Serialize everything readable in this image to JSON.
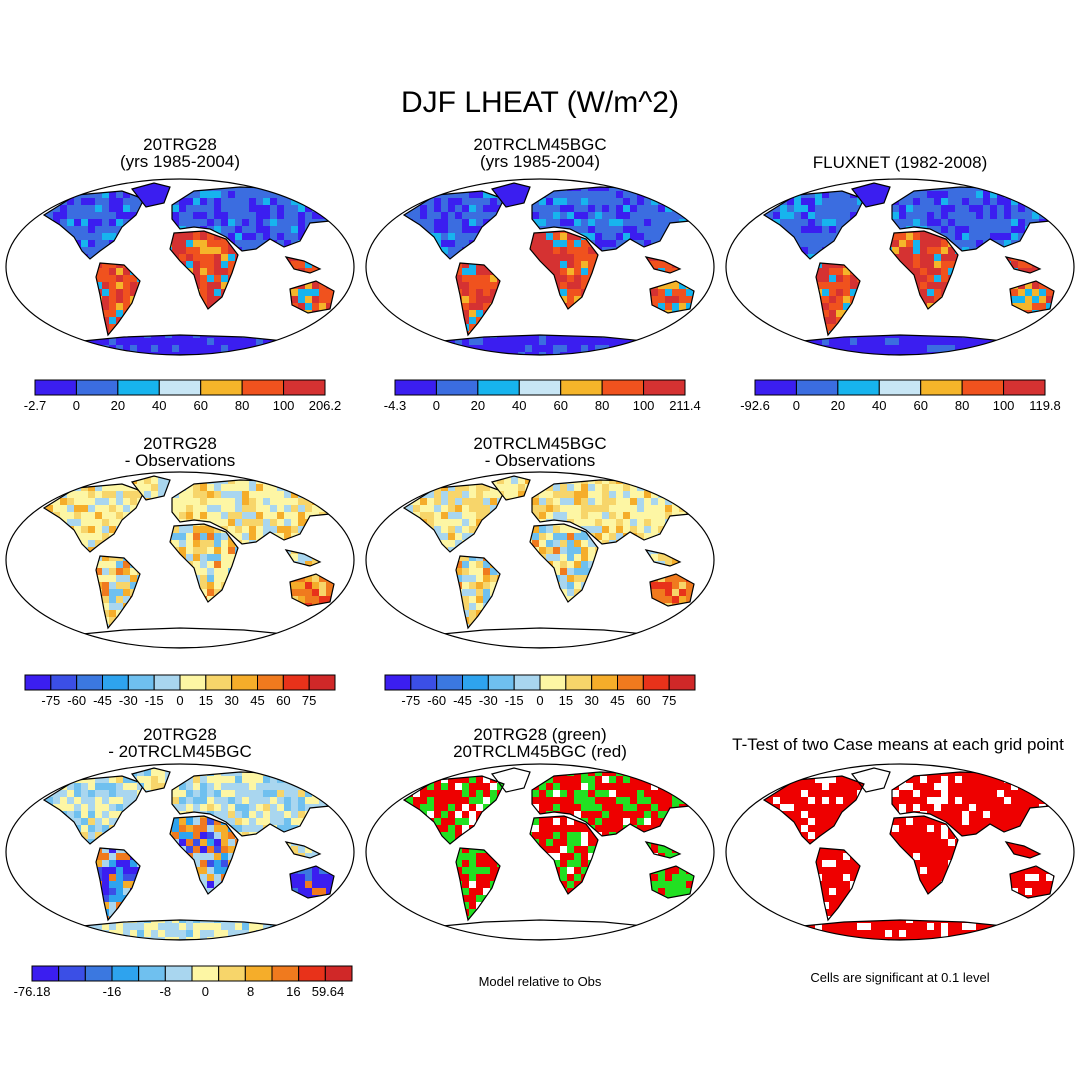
{
  "main_title": "DJF LHEAT (W/m^2)",
  "panels": [
    {
      "title_lines": [
        "20TRG28",
        "(yrs 1985-2004)"
      ],
      "kind": "abs",
      "colorbar_labels": [
        "-2.7",
        "0",
        "20",
        "40",
        "60",
        "80",
        "100",
        "206.2"
      ]
    },
    {
      "title_lines": [
        "20TRCLM45BGC",
        "(yrs 1985-2004)"
      ],
      "kind": "abs",
      "colorbar_labels": [
        "-4.3",
        "0",
        "20",
        "40",
        "60",
        "80",
        "100",
        "211.4"
      ]
    },
    {
      "title_lines": [
        "FLUXNET (1982-2008)"
      ],
      "kind": "abs",
      "colorbar_labels": [
        "-92.6",
        "0",
        "20",
        "40",
        "60",
        "80",
        "100",
        "119.8"
      ]
    },
    {
      "title_lines": [
        "20TRG28",
        "- Observations"
      ],
      "kind": "diff",
      "colorbar_labels": [
        "-75",
        "-60",
        "-45",
        "-30",
        "-15",
        "0",
        "15",
        "30",
        "45",
        "60",
        "75"
      ]
    },
    {
      "title_lines": [
        "20TRCLM45BGC",
        "- Observations"
      ],
      "kind": "diff",
      "colorbar_labels": [
        "-75",
        "-60",
        "-45",
        "-30",
        "-15",
        "0",
        "15",
        "30",
        "45",
        "60",
        "75"
      ]
    },
    {
      "title_lines": [
        "20TRG28",
        "- 20TRCLM45BGC"
      ],
      "kind": "diff2",
      "colorbar_labels": [
        "-76.18",
        "-16",
        "-8",
        "0",
        "8",
        "16",
        "59.64"
      ]
    },
    {
      "title_lines": [
        "20TRG28 (green)",
        "20TRCLM45BGC (red)"
      ],
      "kind": "green-red",
      "note": "Model relative to Obs"
    },
    {
      "title_lines": [
        "T-Test of two Case means at each grid point"
      ],
      "kind": "ttest",
      "note": "Cells are significant at 0.1 level"
    }
  ],
  "colors": {
    "abs_scale": [
      "#3b1ef0",
      "#3b6de0",
      "#17b4ee",
      "#c8e6f5",
      "#f5b52a",
      "#f0521e",
      "#d53232"
    ],
    "diff_scale": [
      "#3b1ef0",
      "#3b4fe6",
      "#3b78e0",
      "#2ea3ee",
      "#6fc0ef",
      "#a9d6ef",
      "#fdf6a4",
      "#f7d56a",
      "#f5ad2a",
      "#f07a1e",
      "#e8321a",
      "#d02828"
    ],
    "land_absent": "#ffffff",
    "green": "#22e022",
    "red": "#ee0000"
  },
  "chart_data": [
    {
      "type": "heatmap",
      "title": "20TRG28 (yrs 1985-2004)",
      "colorbar_range": [
        -2.7,
        206.2
      ],
      "levels": [
        0,
        20,
        40,
        60,
        80,
        100
      ]
    },
    {
      "type": "heatmap",
      "title": "20TRCLM45BGC (yrs 1985-2004)",
      "colorbar_range": [
        -4.3,
        211.4
      ],
      "levels": [
        0,
        20,
        40,
        60,
        80,
        100
      ]
    },
    {
      "type": "heatmap",
      "title": "FLUXNET (1982-2008)",
      "colorbar_range": [
        -92.6,
        119.8
      ],
      "levels": [
        0,
        20,
        40,
        60,
        80,
        100
      ]
    },
    {
      "type": "heatmap",
      "title": "20TRG28 - Observations",
      "levels": [
        -75,
        -60,
        -45,
        -30,
        -15,
        0,
        15,
        30,
        45,
        60,
        75
      ]
    },
    {
      "type": "heatmap",
      "title": "20TRCLM45BGC - Observations",
      "levels": [
        -75,
        -60,
        -45,
        -30,
        -15,
        0,
        15,
        30,
        45,
        60,
        75
      ]
    },
    {
      "type": "heatmap",
      "title": "20TRG28 - 20TRCLM45BGC",
      "colorbar_range": [
        -76.18,
        59.64
      ],
      "levels": [
        -16,
        -8,
        0,
        8,
        16
      ]
    },
    {
      "type": "heatmap",
      "title": "20TRG28 (green) 20TRCLM45BGC (red)",
      "legend": "Model relative to Obs"
    },
    {
      "type": "heatmap",
      "title": "T-Test of two Case means at each grid point",
      "legend": "Cells are significant at 0.1 level"
    }
  ]
}
